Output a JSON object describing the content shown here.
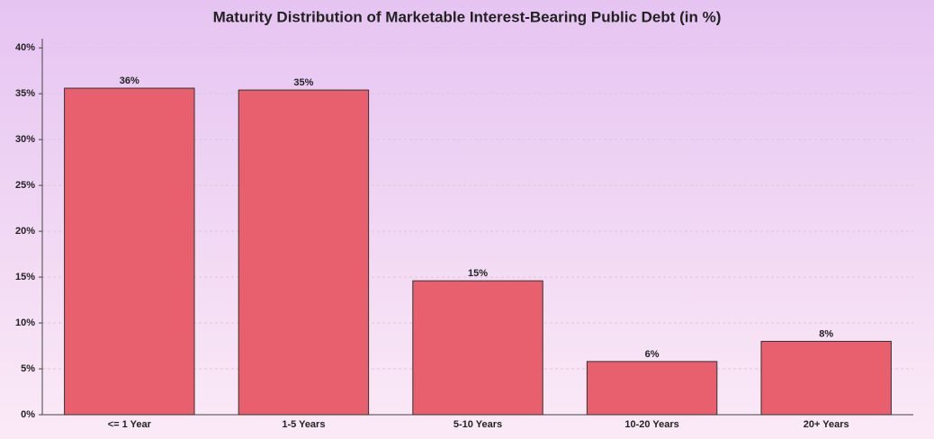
{
  "chart_data": {
    "type": "bar",
    "title": "Maturity Distribution of Marketable Interest-Bearing Public Debt (in %)",
    "categories": [
      "<= 1 Year",
      "1-5 Years",
      "5-10 Years",
      "10-20 Years",
      "20+ Years"
    ],
    "values": [
      35.6,
      35.4,
      14.6,
      5.8,
      8.0
    ],
    "value_labels": [
      "36%",
      "35%",
      "15%",
      "6%",
      "8%"
    ],
    "color": "#e8606e",
    "ylim": [
      0,
      41
    ],
    "yticks": [
      {
        "value": 0,
        "label": "0%"
      },
      {
        "value": 5,
        "label": "5%"
      },
      {
        "value": 10,
        "label": "10%"
      },
      {
        "value": 15,
        "label": "15%"
      },
      {
        "value": 20,
        "label": "20%"
      },
      {
        "value": 25,
        "label": "25%"
      },
      {
        "value": 30,
        "label": "30%"
      },
      {
        "value": 35,
        "label": "35%"
      },
      {
        "value": 40,
        "label": "40%"
      }
    ],
    "grid": true
  }
}
